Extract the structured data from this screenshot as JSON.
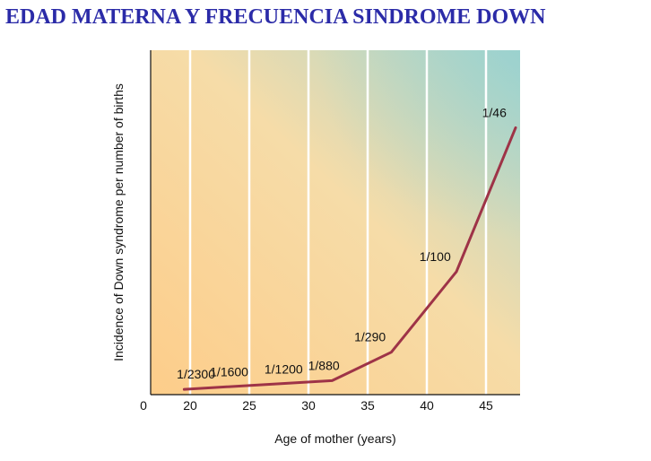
{
  "page": {
    "title": "EDAD MATERNA Y FRECUENCIA SINDROME DOWN"
  },
  "colors": {
    "title": "#2b2ba8",
    "line": "#9e3347",
    "grid": "#ffffff",
    "axis": "#111111",
    "bg_bottom_left": "#fdcd8a",
    "bg_middle": "#f6dca8",
    "bg_top_right": "#a9d6cf"
  },
  "chart_data": {
    "type": "line",
    "title": "EDAD MATERNA Y FRECUENCIA SINDROME DOWN",
    "xlabel": "Age of mother (years)",
    "ylabel": "Incidence of Down syndrome per number of births",
    "xlim": [
      0,
      48
    ],
    "ylim": [
      0,
      0.028
    ],
    "x_axis_break": true,
    "xticks": [
      0,
      20,
      25,
      30,
      35,
      40,
      45
    ],
    "grid": "vertical",
    "series": [
      {
        "name": "Incidence",
        "x": [
          19.5,
          32,
          37,
          42.5,
          47.5
        ],
        "y": [
          0.00043,
          0.00114,
          0.00345,
          0.01,
          0.0217
        ]
      }
    ],
    "annotations": [
      {
        "text": "1/2300",
        "x": 20.5,
        "y": 0.00043
      },
      {
        "text": "1/1600",
        "x": 23.3,
        "y": 0.00062
      },
      {
        "text": "1/1200",
        "x": 27.9,
        "y": 0.00083
      },
      {
        "text": "1/880",
        "x": 31.3,
        "y": 0.00114
      },
      {
        "text": "1/290",
        "x": 35.2,
        "y": 0.00345
      },
      {
        "text": "1/100",
        "x": 40.7,
        "y": 0.01
      },
      {
        "text": "1/46",
        "x": 45.7,
        "y": 0.0217
      }
    ]
  }
}
